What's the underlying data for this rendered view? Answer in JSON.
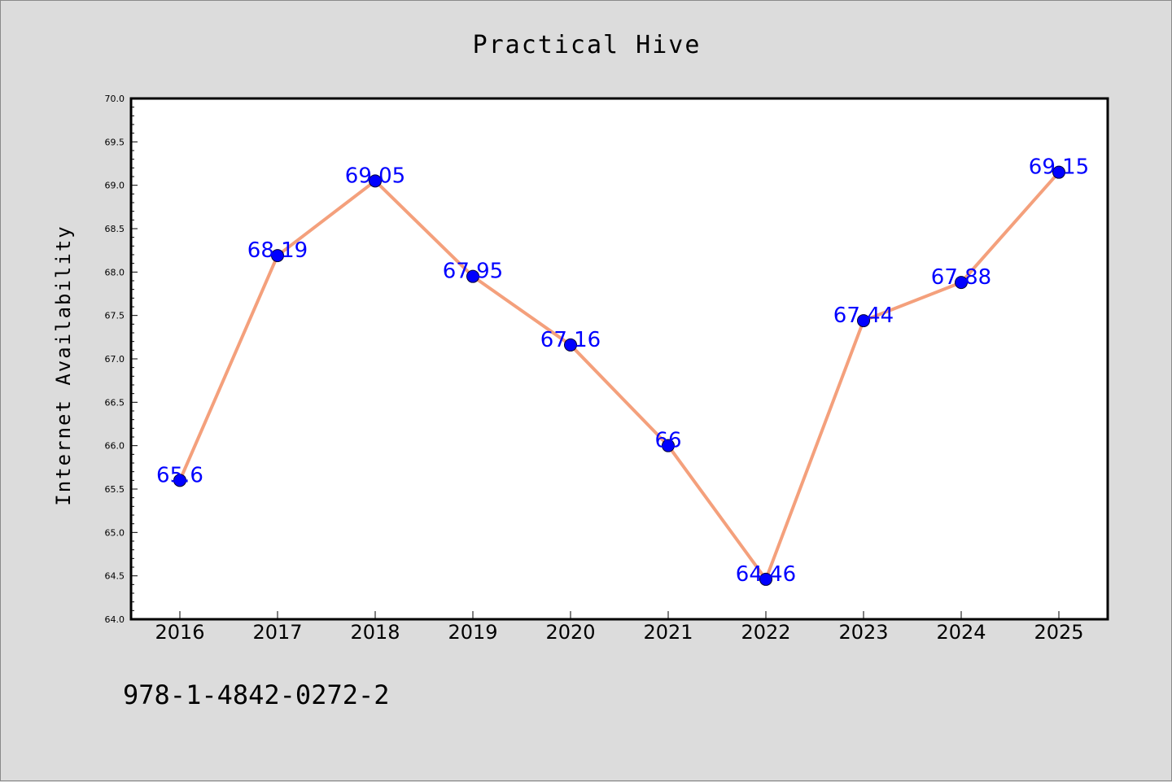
{
  "chart_data": {
    "type": "line",
    "title": "Practical Hive",
    "ylabel": "Internet Availability",
    "xlabel": "",
    "categories": [
      "2016",
      "2017",
      "2018",
      "2019",
      "2020",
      "2021",
      "2022",
      "2023",
      "2024",
      "2025"
    ],
    "values": [
      65.6,
      68.19,
      69.05,
      67.95,
      67.16,
      66,
      64.46,
      67.44,
      67.88,
      69.15
    ],
    "data_labels": [
      "65.6",
      "68.19",
      "69.05",
      "67.95",
      "67.16",
      "66",
      "64.46",
      "67.44",
      "67.88",
      "69.15"
    ],
    "ylim": [
      64.0,
      70.0
    ],
    "yticks": [
      "64.0",
      "64.5",
      "65.0",
      "65.5",
      "66.0",
      "66.5",
      "67.0",
      "67.5",
      "68.0",
      "68.5",
      "69.0",
      "69.5",
      "70.0"
    ],
    "grid": false,
    "line_color": "#f4a07c",
    "marker_color": "#0000ff",
    "label_color": "#0000ff"
  },
  "footer": {
    "isbn": "978-1-4842-0272-2"
  }
}
